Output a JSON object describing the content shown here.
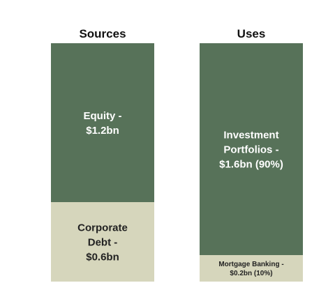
{
  "chart_data": {
    "type": "bar",
    "stacked": true,
    "categories": [
      "Sources",
      "Uses"
    ],
    "series": [
      {
        "category": "Sources",
        "segments": [
          {
            "label": [
              "Equity -",
              "$1.2bn"
            ],
            "value": 1.2,
            "color": "#577259"
          },
          {
            "label": [
              "Corporate",
              "Debt -",
              "$0.6bn"
            ],
            "value": 0.6,
            "color": "#d6d6bc"
          }
        ]
      },
      {
        "category": "Uses",
        "segments": [
          {
            "label": [
              "Investment",
              "Portfolios -",
              "$1.6bn (90%)"
            ],
            "value": 1.6,
            "color": "#577259"
          },
          {
            "label": [
              "Mortgage Banking -",
              "$0.2bn (10%)"
            ],
            "value": 0.2,
            "color": "#d6d6bc"
          }
        ]
      }
    ]
  }
}
